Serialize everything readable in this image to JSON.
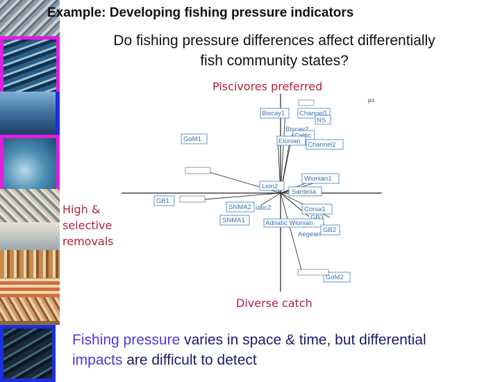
{
  "title": "Example: Developing fishing pressure indicators",
  "question_line1": "Do fishing pressure differences affect differentially",
  "question_line2": "fish community states?",
  "axis_labels": {
    "top": "Piscivores preferred",
    "left_line1": "High &",
    "left_line2": "selective",
    "left_line3": "removals",
    "bottom": "Diverse catch"
  },
  "caption": {
    "part1": "Fishing pressure",
    "part2": " varies in space & time, but differential",
    "part3": "impacts",
    "part4": " are difficult to detect"
  },
  "plot_labels": {
    "biscay1": "Biscay1",
    "channel1": "Channel1",
    "ns": "NS",
    "biscay2": "Biscay2",
    "celtic": "Celtic",
    "elonian": "Elonian",
    "channel2": "Channel2",
    "gom1": "GoM1",
    "wionian1": "Wionian1",
    "lion2": "Lion2",
    "sardinia": "Sardinia",
    "gb1": "GB1",
    "snma2": "SNMA2",
    "adriatic2": "iatic2",
    "corsa1": "Corsa1",
    "gb3": "GB3",
    "snma1": "SNMA1",
    "adriatic_wionian": "Adriatic Wionian",
    "gb2": "GB2",
    "aegean": "Aegean",
    "gom2": "GoM2",
    "corner": "js1"
  },
  "colors": {
    "title": "#111111",
    "axis_label": "#b0203a",
    "caption": "#1a1a6e",
    "caption_highlight": "#4a3bd6",
    "plot_label": "#3a6fb0",
    "frame_magenta": "#e11de0",
    "frame_blue": "#1b2fe0"
  },
  "image_strip": [
    "fish-market-painting",
    "school-of-fish-painting",
    "tuna-boat-painting",
    "blue-sea-painting",
    "net-and-rope-painting",
    "seabird-painting",
    "mosaic-fish-painting",
    "octopus-painting",
    "mosaic-painting",
    "flatfish-painting",
    "deep-sea-painting"
  ]
}
